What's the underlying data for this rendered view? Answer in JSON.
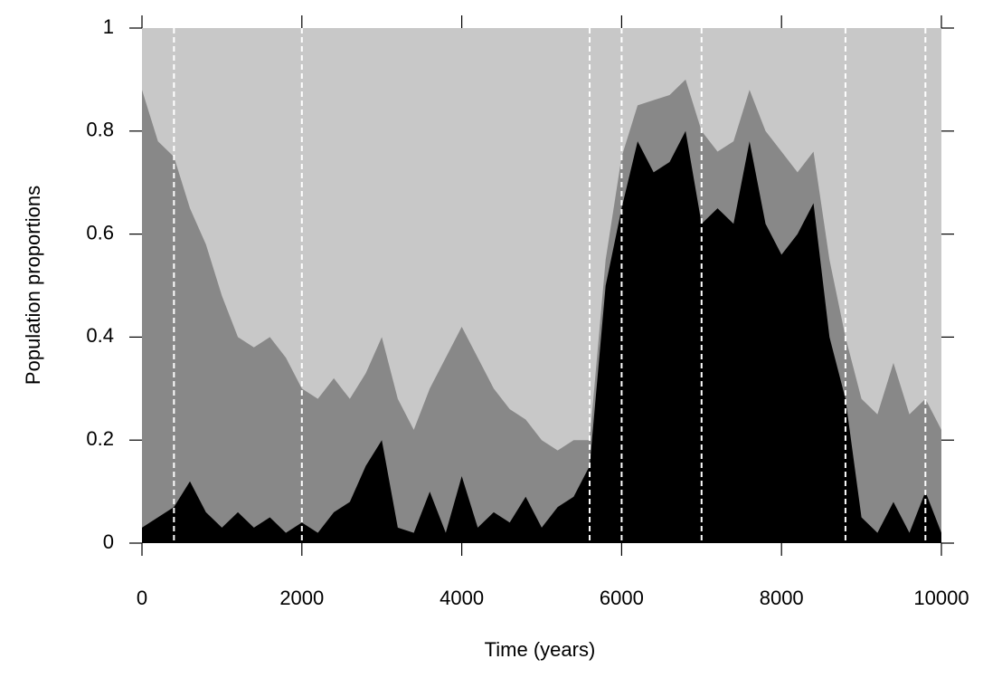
{
  "chart_data": {
    "type": "stacked_area",
    "xlabel": "Time (years)",
    "ylabel": "Population proportions",
    "x": [
      0,
      200,
      400,
      600,
      800,
      1000,
      1200,
      1400,
      1600,
      1800,
      2000,
      2200,
      2400,
      2600,
      2800,
      3000,
      3200,
      3400,
      3600,
      3800,
      4000,
      4200,
      4400,
      4600,
      4800,
      5000,
      5200,
      5400,
      5600,
      5800,
      6000,
      6200,
      6400,
      6600,
      6800,
      7000,
      7200,
      7400,
      7600,
      7800,
      8000,
      8200,
      8400,
      8600,
      8800,
      9000,
      9200,
      9400,
      9600,
      9800,
      10000
    ],
    "series": [
      {
        "color": "#000000",
        "values": [
          0.03,
          0.05,
          0.07,
          0.12,
          0.06,
          0.03,
          0.06,
          0.03,
          0.05,
          0.02,
          0.04,
          0.02,
          0.06,
          0.08,
          0.15,
          0.2,
          0.03,
          0.02,
          0.1,
          0.02,
          0.13,
          0.03,
          0.06,
          0.04,
          0.09,
          0.03,
          0.07,
          0.09,
          0.15,
          0.5,
          0.65,
          0.78,
          0.72,
          0.74,
          0.8,
          0.62,
          0.65,
          0.62,
          0.78,
          0.62,
          0.56,
          0.6,
          0.66,
          0.4,
          0.28,
          0.05,
          0.02,
          0.08,
          0.02,
          0.1,
          0.02
        ]
      },
      {
        "color": "#888888",
        "values": [
          0.85,
          0.73,
          0.68,
          0.53,
          0.52,
          0.45,
          0.34,
          0.35,
          0.35,
          0.34,
          0.26,
          0.26,
          0.26,
          0.2,
          0.18,
          0.2,
          0.25,
          0.2,
          0.2,
          0.34,
          0.29,
          0.33,
          0.24,
          0.22,
          0.15,
          0.17,
          0.11,
          0.11,
          0.05,
          0.05,
          0.1,
          0.07,
          0.14,
          0.13,
          0.1,
          0.18,
          0.11,
          0.16,
          0.1,
          0.18,
          0.2,
          0.12,
          0.1,
          0.15,
          0.12,
          0.23,
          0.23,
          0.27,
          0.23,
          0.18,
          0.2
        ]
      },
      {
        "color": "#c8c8c8",
        "values": [
          0.12,
          0.22,
          0.25,
          0.35,
          0.42,
          0.52,
          0.6,
          0.62,
          0.6,
          0.64,
          0.7,
          0.72,
          0.68,
          0.72,
          0.67,
          0.6,
          0.72,
          0.78,
          0.7,
          0.64,
          0.58,
          0.64,
          0.7,
          0.74,
          0.76,
          0.8,
          0.82,
          0.8,
          0.8,
          0.45,
          0.25,
          0.15,
          0.14,
          0.13,
          0.1,
          0.2,
          0.24,
          0.22,
          0.12,
          0.2,
          0.24,
          0.28,
          0.24,
          0.45,
          0.6,
          0.72,
          0.75,
          0.65,
          0.75,
          0.72,
          0.78
        ]
      }
    ],
    "vlines": [
      400,
      2000,
      5600,
      6000,
      7000,
      8800,
      9800
    ],
    "xlim": [
      0,
      10000
    ],
    "xticks": [
      0,
      2000,
      4000,
      6000,
      8000,
      10000
    ],
    "ylim": [
      0,
      1
    ],
    "yticks": [
      0,
      0.2,
      0.4,
      0.6,
      0.8,
      1
    ]
  }
}
